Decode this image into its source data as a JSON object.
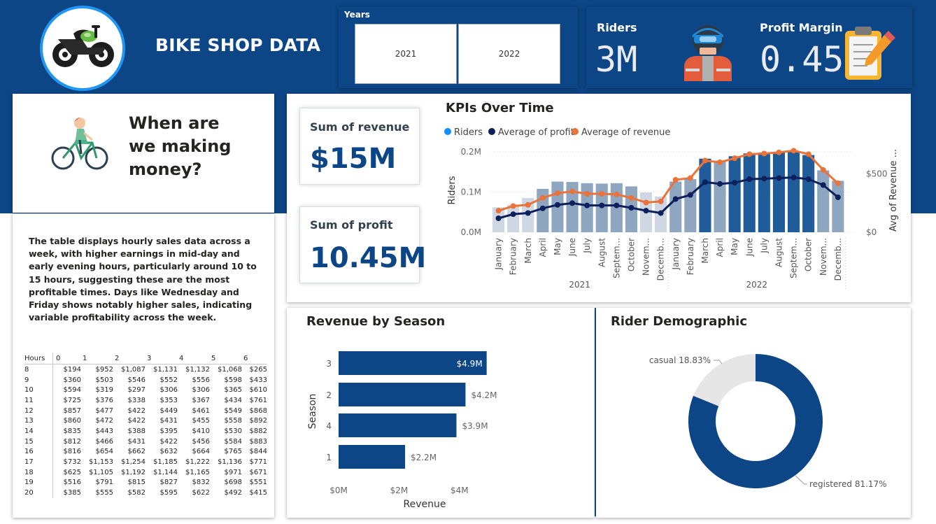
{
  "header": {
    "title": "BIKE SHOP DATA"
  },
  "slicer": {
    "label": "Years",
    "options": [
      "2021",
      "2022"
    ]
  },
  "kpis": {
    "riders_label": "Riders",
    "riders_value": "3M",
    "margin_label": "Profit Margin",
    "margin_value": "0.45"
  },
  "question": {
    "line1": "When are",
    "line2": "we making",
    "line3": "money?"
  },
  "description": "The table displays hourly sales data across a week, with higher earnings in mid-day and early evening hours, particularly around 10 to 15 hours, suggesting these are the most profitable times. Days like Wednesday and Friday shows notably higher sales, indicating variable profitability across the week.",
  "matrix": {
    "corner": "Hours",
    "columns": [
      "0",
      "1",
      "2",
      "3",
      "4",
      "5",
      "6"
    ],
    "rows": [
      {
        "hour": "8",
        "values": [
          "$194",
          "$952",
          "$1,087",
          "$1,131",
          "$1,132",
          "$1,068",
          "$265"
        ]
      },
      {
        "hour": "9",
        "values": [
          "$360",
          "$503",
          "$546",
          "$552",
          "$556",
          "$598",
          "$433"
        ]
      },
      {
        "hour": "10",
        "values": [
          "$594",
          "$319",
          "$297",
          "$306",
          "$306",
          "$365",
          "$610"
        ]
      },
      {
        "hour": "11",
        "values": [
          "$725",
          "$376",
          "$338",
          "$353",
          "$367",
          "$434",
          "$761"
        ]
      },
      {
        "hour": "12",
        "values": [
          "$857",
          "$477",
          "$422",
          "$449",
          "$461",
          "$549",
          "$868"
        ]
      },
      {
        "hour": "13",
        "values": [
          "$860",
          "$472",
          "$422",
          "$431",
          "$455",
          "$558",
          "$892"
        ]
      },
      {
        "hour": "14",
        "values": [
          "$835",
          "$443",
          "$388",
          "$395",
          "$410",
          "$530",
          "$882"
        ]
      },
      {
        "hour": "15",
        "values": [
          "$812",
          "$466",
          "$431",
          "$422",
          "$456",
          "$584",
          "$883"
        ]
      },
      {
        "hour": "16",
        "values": [
          "$816",
          "$654",
          "$662",
          "$632",
          "$664",
          "$765",
          "$844"
        ]
      },
      {
        "hour": "17",
        "values": [
          "$732",
          "$1,153",
          "$1,254",
          "$1,185",
          "$1,222",
          "$1,136",
          "$771"
        ]
      },
      {
        "hour": "18",
        "values": [
          "$625",
          "$1,105",
          "$1,192",
          "$1,144",
          "$1,165",
          "$971",
          "$671"
        ]
      },
      {
        "hour": "19",
        "values": [
          "$516",
          "$791",
          "$815",
          "$827",
          "$832",
          "$698",
          "$551"
        ]
      },
      {
        "hour": "20",
        "values": [
          "$385",
          "$555",
          "$582",
          "$595",
          "$622",
          "$492",
          "$415"
        ]
      }
    ]
  },
  "cards": {
    "revenue_label": "Sum of revenue",
    "revenue_value": "$15M",
    "profit_label": "Sum of profit",
    "profit_value": "10.45M"
  },
  "colors": {
    "banner": "#0d4686",
    "riders_light": "#cfd7e2",
    "riders_mid": "#8ea6c0",
    "riders_dark": "#1f5c99",
    "profit_line": "#0d1f5c",
    "revenue_line": "#e9733a",
    "legend_riders": "#118dff",
    "donut_registered": "#0d4686",
    "donut_casual": "#e6e6e6"
  },
  "chart_data": [
    {
      "type": "bar",
      "subtype": "combo bar + line (dual axis)",
      "title": "KPIs Over Time",
      "legend": [
        "Riders",
        "Average of profit",
        "Average of revenue"
      ],
      "legend_position": "top-left",
      "ylabel": "Riders",
      "y2label": "Avg of Revenue ...",
      "ylim": [
        0,
        200000
      ],
      "yticks": [
        "0.0M",
        "0.1M",
        "0.2M"
      ],
      "y2lim": [
        0,
        1200
      ],
      "y2ticks": [
        "$0",
        "$500"
      ],
      "years": [
        "2021",
        "2022"
      ],
      "categories": [
        "January",
        "February",
        "March",
        "April",
        "May",
        "June",
        "July",
        "August",
        "Septem...",
        "October",
        "Novem...",
        "Decemb...",
        "January",
        "February",
        "March",
        "April",
        "May",
        "June",
        "July",
        "August",
        "Septem...",
        "October",
        "Novem...",
        "Decemb..."
      ],
      "series": [
        {
          "name": "Riders",
          "values": [
            62000,
            68000,
            85000,
            108000,
            126000,
            125000,
            122000,
            121000,
            122000,
            114000,
            99000,
            89000,
            126000,
            132000,
            183000,
            178000,
            189000,
            196000,
            198000,
            198000,
            200000,
            192000,
            154000,
            128000
          ]
        },
        {
          "name": "Average of profit",
          "values": [
            120,
            155,
            165,
            205,
            235,
            250,
            230,
            230,
            230,
            210,
            185,
            165,
            285,
            320,
            430,
            415,
            425,
            455,
            460,
            465,
            470,
            455,
            405,
            300
          ]
        },
        {
          "name": "Average of revenue",
          "values": [
            185,
            225,
            235,
            295,
            335,
            350,
            330,
            330,
            325,
            295,
            255,
            265,
            450,
            465,
            615,
            600,
            635,
            670,
            675,
            685,
            700,
            670,
            535,
            420
          ]
        }
      ]
    },
    {
      "type": "bar",
      "orientation": "horizontal",
      "title": "Revenue by Season",
      "xlabel": "Revenue",
      "ylabel": "Season",
      "xlim": [
        0,
        5000000
      ],
      "xticks": [
        "$0M",
        "$2M",
        "$4M"
      ],
      "categories": [
        "3",
        "2",
        "4",
        "1"
      ],
      "values": [
        4900000,
        4200000,
        3900000,
        2200000
      ],
      "data_labels": [
        "$4.9M",
        "$4.2M",
        "$3.9M",
        "$2.2M"
      ]
    },
    {
      "type": "pie",
      "subtype": "donut",
      "title": "Rider Demographic",
      "categories": [
        "registered",
        "casual"
      ],
      "values": [
        81.17,
        18.83
      ],
      "data_labels": [
        "registered 81.17%",
        "casual 18.83%"
      ]
    }
  ]
}
